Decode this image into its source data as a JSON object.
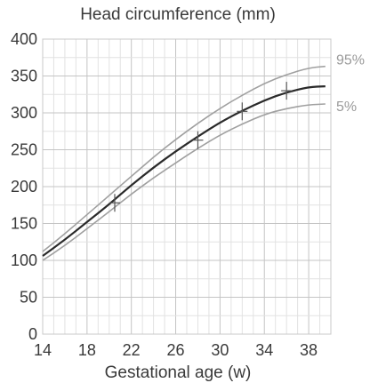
{
  "chart_data": {
    "type": "line",
    "title": "Head circumference (mm)",
    "xlabel": "Gestational age (w)",
    "ylabel": "",
    "xlim": [
      14,
      40
    ],
    "ylim": [
      0,
      400
    ],
    "x_ticks": [
      14,
      18,
      22,
      26,
      30,
      34,
      38
    ],
    "y_ticks": [
      0,
      50,
      100,
      150,
      200,
      250,
      300,
      350,
      400
    ],
    "grid": true,
    "x": [
      14,
      16,
      18,
      20,
      22,
      24,
      26,
      28,
      30,
      32,
      34,
      36,
      38,
      39.5
    ],
    "series": [
      {
        "name": "95%",
        "color": "#a0a0a0",
        "values": [
          112,
          136,
          162,
          188,
          214,
          240,
          264,
          286,
          306,
          324,
          340,
          352,
          361,
          363
        ]
      },
      {
        "name": "",
        "color": "#2a2a2a",
        "values": [
          106,
          128,
          152,
          176,
          202,
          226,
          248,
          268,
          287,
          303,
          317,
          328,
          335,
          336
        ]
      },
      {
        "name": "5%",
        "color": "#a0a0a0",
        "values": [
          100,
          120,
          143,
          166,
          190,
          212,
          232,
          252,
          270,
          285,
          298,
          306,
          311,
          312
        ]
      }
    ],
    "markers": [
      {
        "x": 20.5,
        "y": 178
      },
      {
        "x": 28,
        "y": 263
      },
      {
        "x": 32,
        "y": 302
      },
      {
        "x": 36,
        "y": 330
      }
    ]
  }
}
